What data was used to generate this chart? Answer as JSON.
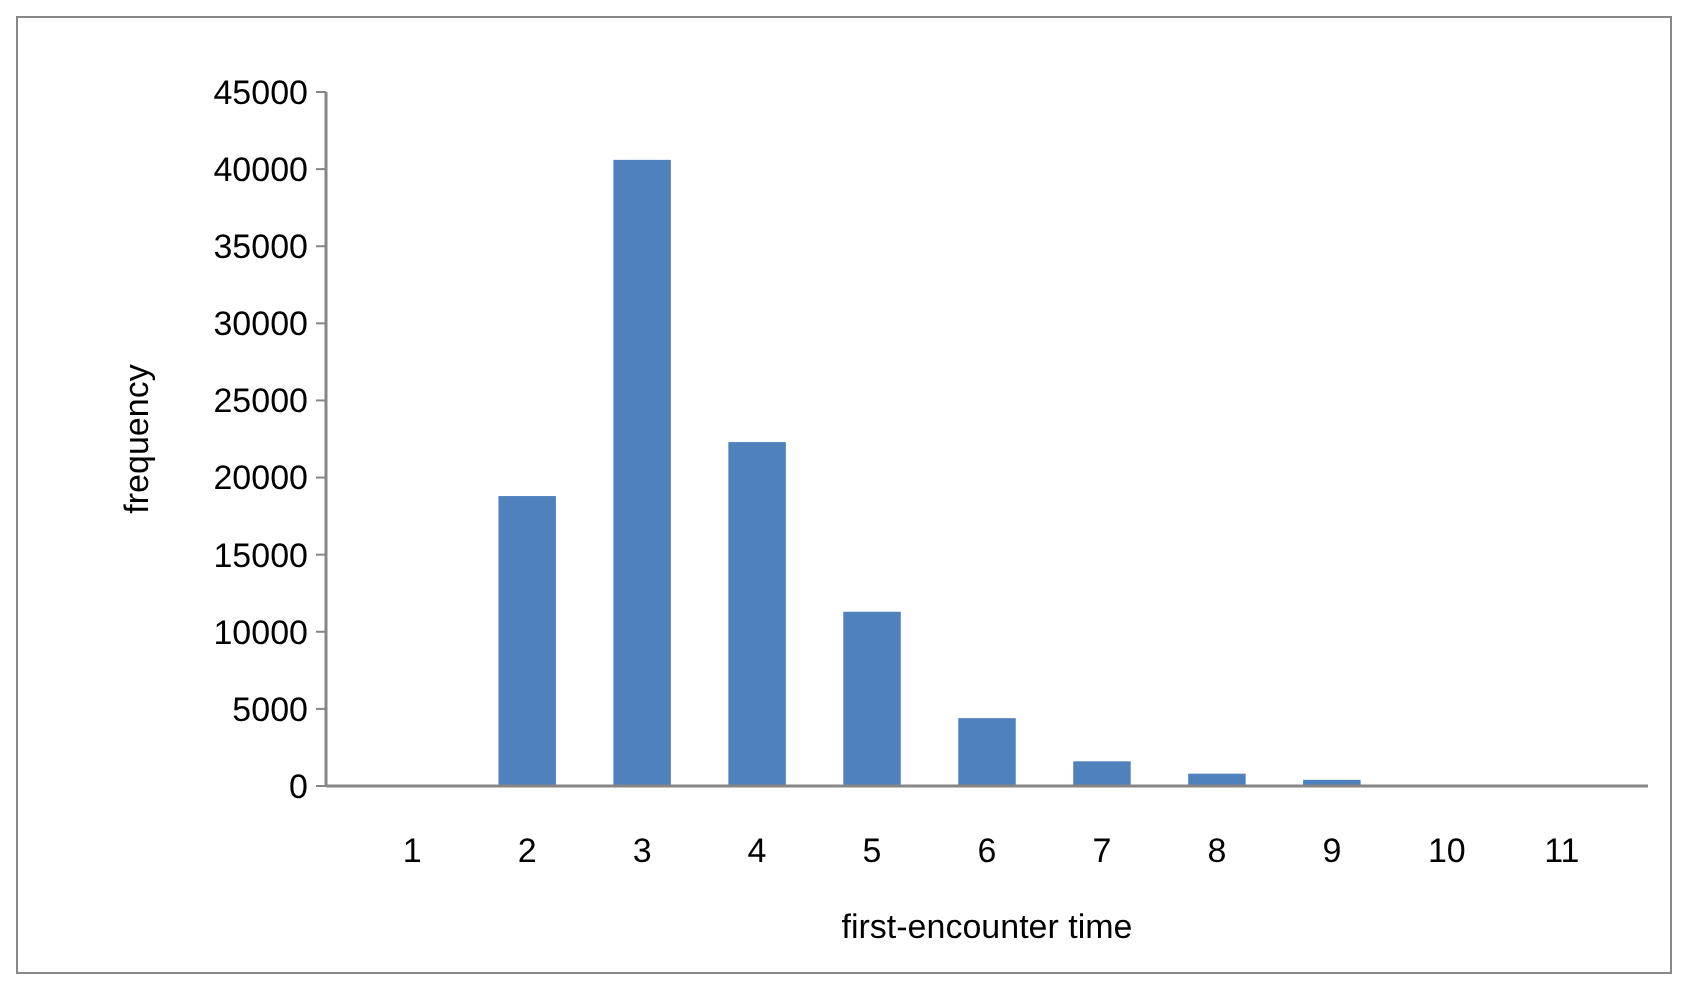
{
  "chart_data": {
    "type": "bar",
    "xlabel": "first-encounter time",
    "ylabel": "frequency",
    "categories": [
      "1",
      "2",
      "3",
      "4",
      "5",
      "6",
      "7",
      "8",
      "9",
      "10",
      "11"
    ],
    "values": [
      0,
      18800,
      40600,
      22300,
      11300,
      4400,
      1600,
      800,
      400,
      0,
      0
    ],
    "color": "#4f81bd",
    "ylim": [
      0,
      45000
    ],
    "yticks": [
      0,
      5000,
      10000,
      15000,
      20000,
      25000,
      30000,
      35000,
      40000,
      45000
    ],
    "grid": false
  }
}
